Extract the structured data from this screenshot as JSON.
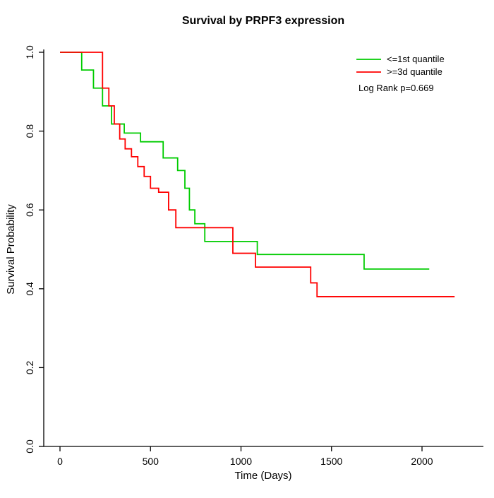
{
  "page": {
    "background": "#ffffff"
  },
  "chart_data": {
    "type": "line",
    "subtype": "kaplan-meier-step",
    "title": "Survival by PRPF3 expression",
    "xlabel": "Time (Days)",
    "ylabel": "Survival Probability",
    "xlim": [
      0,
      2200
    ],
    "ylim": [
      0.0,
      1.0
    ],
    "x_ticks": [
      0,
      500,
      1000,
      1500,
      2000
    ],
    "x_tick_labels": [
      "0",
      "500",
      "1000",
      "1500",
      "2000"
    ],
    "y_ticks": [
      0.0,
      0.2,
      0.4,
      0.6,
      0.8,
      1.0
    ],
    "y_tick_labels": [
      "0.0",
      "0.2",
      "0.4",
      "0.6",
      "0.8",
      "1.0"
    ],
    "grid": false,
    "legend_position": "top-right",
    "series": [
      {
        "name": "<=1st quantile",
        "color": "#00cc00",
        "points": [
          [
            0,
            1.0
          ],
          [
            120,
            0.955
          ],
          [
            185,
            0.909
          ],
          [
            235,
            0.864
          ],
          [
            285,
            0.818
          ],
          [
            355,
            0.795
          ],
          [
            445,
            0.773
          ],
          [
            570,
            0.732
          ],
          [
            650,
            0.7
          ],
          [
            690,
            0.655
          ],
          [
            715,
            0.6
          ],
          [
            745,
            0.565
          ],
          [
            800,
            0.52
          ],
          [
            1090,
            0.487
          ],
          [
            1680,
            0.45
          ],
          [
            2040,
            0.45
          ]
        ]
      },
      {
        "name": ">=3d quantile",
        "color": "#ff0000",
        "points": [
          [
            0,
            1.0
          ],
          [
            235,
            0.909
          ],
          [
            270,
            0.864
          ],
          [
            300,
            0.818
          ],
          [
            330,
            0.78
          ],
          [
            360,
            0.755
          ],
          [
            395,
            0.735
          ],
          [
            430,
            0.71
          ],
          [
            465,
            0.685
          ],
          [
            500,
            0.655
          ],
          [
            545,
            0.645
          ],
          [
            600,
            0.6
          ],
          [
            640,
            0.555
          ],
          [
            955,
            0.49
          ],
          [
            1080,
            0.455
          ],
          [
            1385,
            0.415
          ],
          [
            1420,
            0.38
          ],
          [
            2180,
            0.38
          ]
        ]
      }
    ],
    "annotations": [
      {
        "text": "Log Rank p=0.669"
      }
    ]
  }
}
